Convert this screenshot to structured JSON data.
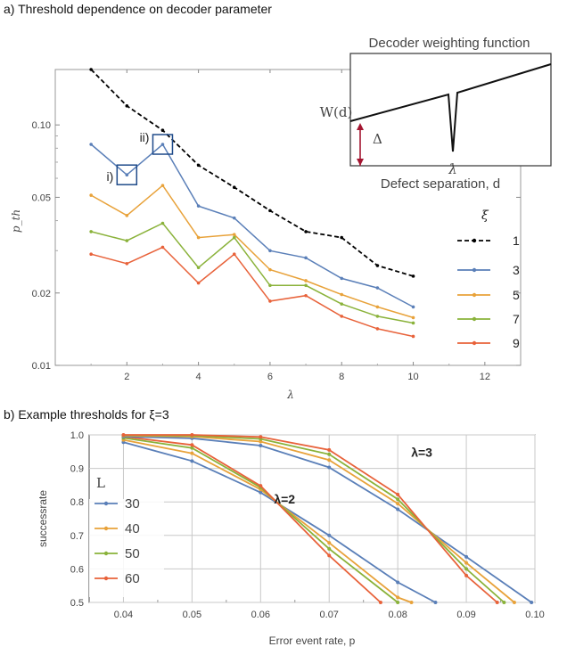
{
  "chart_data": [
    {
      "id": "a",
      "type": "line",
      "title": "a) Threshold dependence on decoder parameter",
      "xlabel": "λ",
      "ylabel": "p_th",
      "xlim": [
        0,
        13
      ],
      "ylim": [
        0.01,
        0.17
      ],
      "yscale": "log",
      "xticks": [
        "2",
        "4",
        "6",
        "8",
        "10",
        "12"
      ],
      "yticks": [
        "0.01",
        "0.02",
        "0.05",
        "0.10"
      ],
      "legend_title": "ξ",
      "legend_position": "right",
      "annotations": [
        "i)",
        "ii)"
      ],
      "series": [
        {
          "name": "1",
          "color": "#000000",
          "dashed": true,
          "x": [
            1,
            2,
            3,
            4,
            5,
            6,
            7,
            8,
            9,
            10
          ],
          "y": [
            0.17,
            0.12,
            0.095,
            0.068,
            0.055,
            0.044,
            0.036,
            0.034,
            0.026,
            0.0235
          ]
        },
        {
          "name": "3",
          "color": "#5a7fb8",
          "x": [
            1,
            2,
            3,
            4,
            5,
            6,
            7,
            8,
            9,
            10
          ],
          "y": [
            0.083,
            0.062,
            0.083,
            0.046,
            0.041,
            0.03,
            0.028,
            0.023,
            0.021,
            0.0175
          ]
        },
        {
          "name": "5",
          "color": "#e8a23a",
          "x": [
            1,
            2,
            3,
            4,
            5,
            6,
            7,
            8,
            9,
            10
          ],
          "y": [
            0.051,
            0.042,
            0.056,
            0.034,
            0.035,
            0.025,
            0.0225,
            0.0197,
            0.0175,
            0.0158
          ]
        },
        {
          "name": "7",
          "color": "#8ab23a",
          "x": [
            1,
            2,
            3,
            4,
            5,
            6,
            7,
            8,
            9,
            10
          ],
          "y": [
            0.036,
            0.033,
            0.039,
            0.0255,
            0.034,
            0.0215,
            0.0215,
            0.018,
            0.016,
            0.015
          ]
        },
        {
          "name": "9",
          "color": "#e8623a",
          "x": [
            1,
            2,
            3,
            4,
            5,
            6,
            7,
            8,
            9,
            10
          ],
          "y": [
            0.029,
            0.0265,
            0.031,
            0.022,
            0.029,
            0.0185,
            0.0195,
            0.016,
            0.0142,
            0.0132
          ]
        }
      ],
      "inset": {
        "title": "Decoder weighting function",
        "xlabel": "Defect separation, d",
        "ylabel": "W(d)",
        "delta_label": "Δ",
        "tick_label": "λ"
      }
    },
    {
      "id": "b",
      "type": "line",
      "title": "b) Example thresholds for ξ=3",
      "xlabel": "Error event rate, p",
      "ylabel": "successrate",
      "xlim": [
        0.035,
        0.1
      ],
      "ylim": [
        0.5,
        1.0
      ],
      "xticks": [
        "0.04",
        "0.05",
        "0.06",
        "0.07",
        "0.08",
        "0.09",
        "0.10"
      ],
      "yticks": [
        "0.5",
        "0.6",
        "0.7",
        "0.8",
        "0.9",
        "1.0"
      ],
      "legend_title": "L",
      "legend_entries": [
        "30",
        "40",
        "50",
        "60"
      ],
      "legend_colors": [
        "#5a7fb8",
        "#e8a23a",
        "#8ab23a",
        "#e8623a"
      ],
      "curve_labels": [
        {
          "text": "λ=2",
          "x": 0.0635,
          "y": 0.795
        },
        {
          "text": "λ=3",
          "x": 0.0835,
          "y": 0.935
        }
      ],
      "series": [
        {
          "name": "λ=2, L=30",
          "color": "#5a7fb8",
          "x": [
            0.04,
            0.05,
            0.06,
            0.07,
            0.08,
            0.0855
          ],
          "y": [
            0.978,
            0.922,
            0.828,
            0.7,
            0.56,
            0.5
          ]
        },
        {
          "name": "λ=2, L=40",
          "color": "#e8a23a",
          "x": [
            0.04,
            0.05,
            0.06,
            0.07,
            0.08,
            0.082
          ],
          "y": [
            0.985,
            0.945,
            0.837,
            0.678,
            0.515,
            0.5
          ]
        },
        {
          "name": "λ=2, L=50",
          "color": "#8ab23a",
          "x": [
            0.04,
            0.05,
            0.06,
            0.07,
            0.08
          ],
          "y": [
            0.991,
            0.961,
            0.843,
            0.66,
            0.5
          ]
        },
        {
          "name": "λ=2, L=60",
          "color": "#e8623a",
          "x": [
            0.04,
            0.05,
            0.06,
            0.07,
            0.0775
          ],
          "y": [
            0.995,
            0.97,
            0.848,
            0.64,
            0.5
          ]
        },
        {
          "name": "λ=3, L=30",
          "color": "#5a7fb8",
          "x": [
            0.04,
            0.05,
            0.06,
            0.07,
            0.08,
            0.09,
            0.0995
          ],
          "y": [
            0.995,
            0.99,
            0.968,
            0.903,
            0.778,
            0.636,
            0.5
          ]
        },
        {
          "name": "λ=3, L=40",
          "color": "#e8a23a",
          "x": [
            0.04,
            0.05,
            0.06,
            0.07,
            0.08,
            0.09,
            0.097
          ],
          "y": [
            0.998,
            0.995,
            0.98,
            0.925,
            0.795,
            0.618,
            0.5
          ]
        },
        {
          "name": "λ=3, L=50",
          "color": "#8ab23a",
          "x": [
            0.04,
            0.05,
            0.06,
            0.07,
            0.08,
            0.09,
            0.0955
          ],
          "y": [
            0.999,
            0.998,
            0.988,
            0.942,
            0.808,
            0.6,
            0.5
          ]
        },
        {
          "name": "λ=3, L=60",
          "color": "#e8623a",
          "x": [
            0.04,
            0.05,
            0.06,
            0.07,
            0.08,
            0.09,
            0.0945
          ],
          "y": [
            1.0,
            1.0,
            0.994,
            0.955,
            0.822,
            0.58,
            0.5
          ]
        }
      ]
    }
  ]
}
